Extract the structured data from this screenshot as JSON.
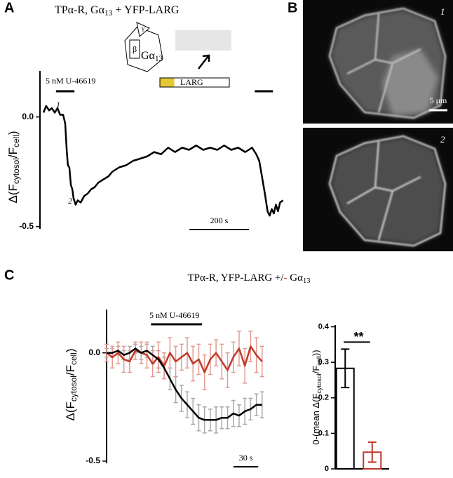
{
  "panel_labels": [
    "A",
    "B",
    "C"
  ],
  "diagram": {
    "beta": "β",
    "gamma": "γ",
    "alpha": [
      "Gα",
      "13"
    ],
    "effector": "LARG"
  },
  "images": [
    {
      "label": "1",
      "scale_bar": "5 μm"
    },
    {
      "label": "2"
    }
  ],
  "chart_data": [
    {
      "type": "line",
      "title": [
        "TPα-R, Gα",
        "13",
        " + YFP-LARG"
      ],
      "ylabel": [
        "Δ(F",
        "cytosol",
        "/F",
        "cell",
        ")"
      ],
      "x": [
        0,
        9,
        19,
        28,
        38,
        47,
        56,
        66,
        73,
        78,
        82,
        87,
        92,
        97,
        101,
        108,
        115,
        125,
        137,
        148,
        160,
        172,
        184,
        195,
        207,
        219,
        231,
        254,
        278,
        301,
        325,
        348,
        372,
        395,
        419,
        442,
        466,
        489,
        513,
        537,
        560,
        584,
        607,
        631,
        654,
        678,
        701,
        715,
        725,
        734,
        744,
        753,
        760,
        767,
        774,
        781,
        788,
        795,
        805
      ],
      "series": [
        {
          "color": "#000000",
          "values": [
            0.02,
            0.05,
            0.03,
            0.04,
            0.02,
            0.04,
            0.01,
            0.01,
            -0.03,
            -0.15,
            -0.22,
            -0.23,
            -0.31,
            -0.33,
            -0.37,
            -0.4,
            -0.38,
            -0.39,
            -0.36,
            -0.35,
            -0.33,
            -0.32,
            -0.3,
            -0.29,
            -0.28,
            -0.27,
            -0.25,
            -0.23,
            -0.22,
            -0.2,
            -0.19,
            -0.18,
            -0.16,
            -0.17,
            -0.14,
            -0.16,
            -0.14,
            -0.15,
            -0.13,
            -0.15,
            -0.14,
            -0.15,
            -0.13,
            -0.15,
            -0.14,
            -0.16,
            -0.14,
            -0.17,
            -0.2,
            -0.27,
            -0.35,
            -0.43,
            -0.45,
            -0.42,
            -0.44,
            -0.4,
            -0.43,
            -0.39,
            -0.38
          ]
        }
      ],
      "xlim": [
        0,
        820
      ],
      "ylim": [
        -0.51,
        0.21
      ],
      "yticks": [
        {
          "value": 0,
          "label": "0.0"
        },
        -0.5
      ],
      "stimulus": {
        "label": "5 nM U-46619",
        "spans": [
          [
            42,
            104
          ],
          [
            710,
            771
          ]
        ]
      },
      "scale_bar": {
        "value": 200,
        "label": "200 s"
      },
      "annotations": [
        "1",
        "2"
      ]
    },
    {
      "type": "line",
      "title": [
        "TPα-R, YFP-LARG +/",
        "-",
        " Gα",
        "13"
      ],
      "ylabel": [
        "Δ(F",
        "cytosol",
        "/F",
        "cell",
        ")"
      ],
      "x": [
        0,
        7,
        14,
        21,
        28,
        35,
        42,
        49,
        56,
        63,
        70,
        77,
        84,
        91,
        98,
        105,
        112,
        119,
        126,
        133,
        140,
        147,
        154,
        161,
        168,
        175,
        182,
        189
      ],
      "series": [
        {
          "color": "#000000",
          "error_color": "#aaaaaa",
          "values": [
            0.0,
            0.0,
            0.01,
            -0.01,
            0.0,
            0.02,
            0.0,
            0.01,
            -0.01,
            -0.03,
            -0.07,
            -0.12,
            -0.17,
            -0.21,
            -0.24,
            -0.27,
            -0.3,
            -0.31,
            -0.31,
            -0.31,
            -0.3,
            -0.3,
            -0.28,
            -0.29,
            -0.27,
            -0.26,
            -0.24,
            -0.24
          ],
          "errors": [
            0.02,
            0.02,
            0.02,
            0.02,
            0.03,
            0.02,
            0.03,
            0.03,
            0.04,
            0.04,
            0.05,
            0.05,
            0.06,
            0.06,
            0.06,
            0.06,
            0.06,
            0.06,
            0.05,
            0.06,
            0.05,
            0.05,
            0.06,
            0.05,
            0.06,
            0.05,
            0.05,
            0.06
          ]
        },
        {
          "color": "#c0392b",
          "error_color": "#e39b90",
          "values": [
            0.0,
            -0.02,
            0.0,
            -0.03,
            -0.04,
            0.01,
            0.0,
            -0.01,
            -0.05,
            -0.02,
            -0.06,
            0.0,
            -0.04,
            -0.02,
            0.0,
            -0.05,
            -0.03,
            -0.09,
            -0.03,
            0.0,
            -0.04,
            -0.08,
            -0.02,
            0.02,
            -0.06,
            0.03,
            -0.01,
            -0.04
          ],
          "errors": [
            0.04,
            0.05,
            0.05,
            0.06,
            0.05,
            0.04,
            0.05,
            0.06,
            0.06,
            0.07,
            0.06,
            0.07,
            0.07,
            0.06,
            0.07,
            0.08,
            0.07,
            0.08,
            0.07,
            0.06,
            0.08,
            0.08,
            0.07,
            0.08,
            0.08,
            0.07,
            0.08,
            0.07
          ]
        }
      ],
      "xlim": [
        0,
        190
      ],
      "ylim": [
        -0.51,
        0.2
      ],
      "yticks": [
        {
          "value": 0,
          "label": "0.0"
        },
        -0.5
      ],
      "stimulus": {
        "label": "5 nM U-46619",
        "spans": [
          [
            54,
            116
          ]
        ]
      },
      "scale_bar": {
        "value": 30,
        "label": "30 s"
      }
    },
    {
      "type": "bar",
      "ylabel": [
        "0-(mean Δ(F",
        "cytosol",
        "/F",
        "cell",
        "))"
      ],
      "categories": [
        null,
        null
      ],
      "values": [
        0.283,
        0.047
      ],
      "errors": [
        0.054,
        0.028
      ],
      "colors": [
        "#000000",
        "#c0392b"
      ],
      "ylim": [
        0,
        0.405
      ],
      "yticks": [
        0,
        0.1,
        0.2,
        0.3,
        0.4
      ],
      "significance": "**"
    }
  ]
}
